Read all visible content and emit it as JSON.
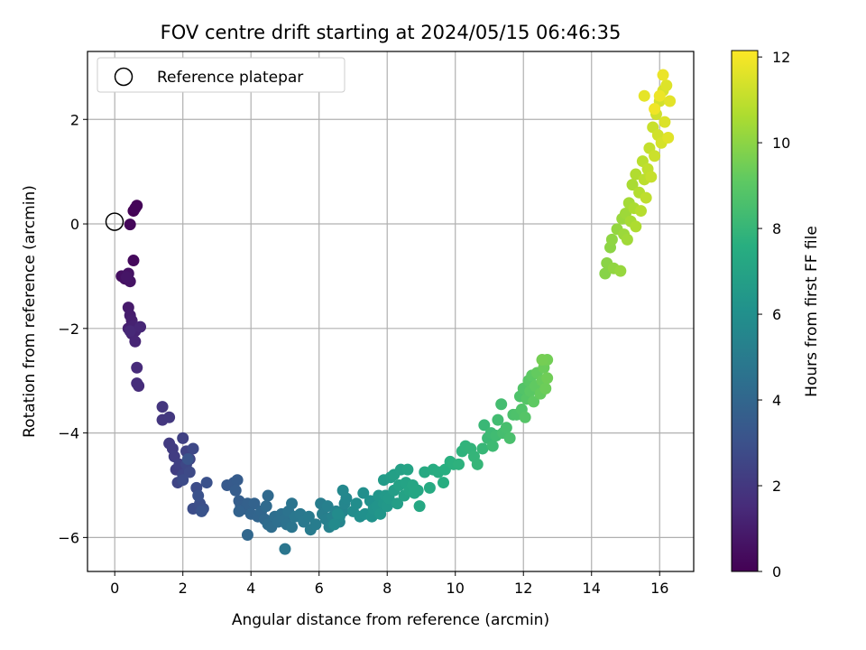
{
  "chart_data": {
    "type": "scatter",
    "title": "FOV centre drift starting at 2024/05/15 06:46:35",
    "xlabel": "Angular distance from reference (arcmin)",
    "ylabel": "Rotation from reference (arcmin)",
    "xlim": [
      -0.8,
      17.0
    ],
    "ylim": [
      -6.65,
      3.3
    ],
    "x_ticks": [
      0,
      2,
      4,
      6,
      8,
      10,
      12,
      14,
      16
    ],
    "x_tick_labels": [
      "0",
      "2",
      "4",
      "6",
      "8",
      "10",
      "12",
      "14",
      "16"
    ],
    "y_ticks": [
      -6,
      -4,
      -2,
      0,
      2
    ],
    "y_tick_labels": [
      "−6",
      "−4",
      "−2",
      "0",
      "2"
    ],
    "grid": true,
    "legend": {
      "position": "top-left",
      "entries": [
        "Reference platepar"
      ]
    },
    "reference_point": {
      "x": 0,
      "y": 0,
      "label": "Reference platepar"
    },
    "colorbar": {
      "label": "Hours from first FF file",
      "colormap": "viridis",
      "range": [
        0,
        12.15
      ],
      "ticks": [
        0,
        2,
        4,
        6,
        8,
        10,
        12
      ],
      "tick_labels": [
        "0",
        "2",
        "4",
        "6",
        "8",
        "10",
        "12"
      ]
    },
    "points": [
      [
        0.45,
        -0.01,
        0.2
      ],
      [
        0.55,
        0.25,
        0.05
      ],
      [
        0.65,
        0.35,
        0.1
      ],
      [
        0.6,
        0.3,
        0.15
      ],
      [
        0.55,
        -0.7,
        0.3
      ],
      [
        0.2,
        -1.0,
        0.5
      ],
      [
        0.3,
        -1.05,
        0.55
      ],
      [
        0.4,
        -0.95,
        0.6
      ],
      [
        0.45,
        -1.1,
        0.65
      ],
      [
        0.35,
        -1.02,
        0.7
      ],
      [
        0.4,
        -1.6,
        0.9
      ],
      [
        0.45,
        -1.75,
        1.0
      ],
      [
        0.5,
        -1.85,
        1.05
      ],
      [
        0.4,
        -2.0,
        1.1
      ],
      [
        0.55,
        -1.95,
        1.15
      ],
      [
        0.5,
        -2.1,
        1.2
      ],
      [
        0.6,
        -2.05,
        1.25
      ],
      [
        0.6,
        -2.25,
        1.3
      ],
      [
        0.75,
        -1.97,
        1.35
      ],
      [
        0.45,
        -2.05,
        1.4
      ],
      [
        0.65,
        -2.75,
        1.5
      ],
      [
        0.7,
        -3.1,
        1.55
      ],
      [
        0.65,
        -3.05,
        1.6
      ],
      [
        1.4,
        -3.5,
        1.9
      ],
      [
        1.4,
        -3.75,
        1.95
      ],
      [
        1.6,
        -3.7,
        2.0
      ],
      [
        1.6,
        -4.2,
        2.1
      ],
      [
        1.7,
        -4.3,
        2.15
      ],
      [
        1.75,
        -4.45,
        2.2
      ],
      [
        1.8,
        -4.7,
        2.25
      ],
      [
        1.9,
        -4.6,
        2.3
      ],
      [
        2.0,
        -4.1,
        2.35
      ],
      [
        2.1,
        -4.35,
        2.4
      ],
      [
        2.2,
        -4.5,
        2.45
      ],
      [
        1.85,
        -4.95,
        2.5
      ],
      [
        2.0,
        -4.8,
        2.55
      ],
      [
        2.1,
        -4.6,
        2.6
      ],
      [
        2.3,
        -4.3,
        2.65
      ],
      [
        2.2,
        -4.75,
        2.7
      ],
      [
        2.0,
        -4.9,
        2.75
      ],
      [
        2.4,
        -5.05,
        2.8
      ],
      [
        2.3,
        -5.45,
        2.85
      ],
      [
        2.5,
        -5.35,
        2.9
      ],
      [
        2.6,
        -5.45,
        2.95
      ],
      [
        2.7,
        -4.95,
        3.0
      ],
      [
        2.45,
        -5.2,
        3.05
      ],
      [
        2.55,
        -5.5,
        3.1
      ],
      [
        2.15,
        -4.5,
        3.15
      ],
      [
        3.3,
        -5.0,
        3.4
      ],
      [
        3.5,
        -4.95,
        3.45
      ],
      [
        3.6,
        -4.9,
        3.5
      ],
      [
        3.55,
        -5.1,
        3.55
      ],
      [
        3.65,
        -5.3,
        3.6
      ],
      [
        3.7,
        -5.4,
        3.65
      ],
      [
        3.8,
        -5.45,
        3.7
      ],
      [
        3.9,
        -5.35,
        3.75
      ],
      [
        3.65,
        -5.5,
        3.8
      ],
      [
        4.1,
        -5.35,
        3.85
      ],
      [
        4.0,
        -5.55,
        3.9
      ],
      [
        4.2,
        -5.6,
        3.95
      ],
      [
        4.3,
        -5.5,
        4.0
      ],
      [
        3.9,
        -5.95,
        4.05
      ],
      [
        4.4,
        -5.65,
        4.1
      ],
      [
        4.5,
        -5.2,
        4.15
      ],
      [
        4.45,
        -5.4,
        4.2
      ],
      [
        4.5,
        -5.75,
        4.25
      ],
      [
        4.6,
        -5.8,
        4.3
      ],
      [
        4.7,
        -5.6,
        4.35
      ],
      [
        4.8,
        -5.7,
        4.4
      ],
      [
        4.9,
        -5.55,
        4.45
      ],
      [
        5.0,
        -5.65,
        4.5
      ],
      [
        5.05,
        -5.75,
        4.55
      ],
      [
        5.1,
        -5.5,
        4.6
      ],
      [
        5.2,
        -5.35,
        4.65
      ],
      [
        5.2,
        -5.8,
        4.7
      ],
      [
        5.0,
        -6.22,
        4.75
      ],
      [
        5.3,
        -5.6,
        4.8
      ],
      [
        5.45,
        -5.55,
        4.85
      ],
      [
        5.55,
        -5.7,
        4.9
      ],
      [
        5.7,
        -5.6,
        4.95
      ],
      [
        5.75,
        -5.85,
        5.0
      ],
      [
        5.9,
        -5.75,
        5.05
      ],
      [
        6.05,
        -5.35,
        5.1
      ],
      [
        6.1,
        -5.55,
        5.15
      ],
      [
        6.2,
        -5.65,
        5.2
      ],
      [
        6.25,
        -5.4,
        5.25
      ],
      [
        6.3,
        -5.8,
        5.3
      ],
      [
        6.4,
        -5.6,
        5.35
      ],
      [
        6.5,
        -5.5,
        5.4
      ],
      [
        6.6,
        -5.7,
        5.45
      ],
      [
        6.7,
        -5.5,
        5.5
      ],
      [
        6.75,
        -5.35,
        5.55
      ],
      [
        6.8,
        -5.25,
        5.6
      ],
      [
        6.7,
        -5.1,
        5.65
      ],
      [
        6.6,
        -5.6,
        5.7
      ],
      [
        6.45,
        -5.75,
        5.75
      ],
      [
        6.55,
        -5.55,
        5.8
      ],
      [
        7.0,
        -5.5,
        5.85
      ],
      [
        7.1,
        -5.35,
        5.9
      ],
      [
        7.2,
        -5.6,
        5.95
      ],
      [
        7.3,
        -5.15,
        6.0
      ],
      [
        7.35,
        -5.55,
        6.05
      ],
      [
        7.5,
        -5.3,
        6.1
      ],
      [
        7.55,
        -5.6,
        6.15
      ],
      [
        7.6,
        -5.45,
        6.2
      ],
      [
        7.7,
        -5.4,
        6.25
      ],
      [
        7.75,
        -5.2,
        6.3
      ],
      [
        7.8,
        -5.55,
        6.35
      ],
      [
        7.9,
        -5.35,
        6.4
      ],
      [
        8.0,
        -5.4,
        6.45
      ],
      [
        7.95,
        -5.2,
        6.5
      ],
      [
        8.05,
        -5.25,
        6.55
      ],
      [
        7.9,
        -4.9,
        6.6
      ],
      [
        8.1,
        -4.85,
        6.65
      ],
      [
        8.2,
        -5.1,
        6.7
      ],
      [
        8.3,
        -5.35,
        6.75
      ],
      [
        8.2,
        -4.8,
        6.8
      ],
      [
        8.4,
        -4.7,
        6.85
      ],
      [
        8.35,
        -5.0,
        6.9
      ],
      [
        8.5,
        -5.2,
        6.95
      ],
      [
        8.55,
        -4.95,
        7.0
      ],
      [
        8.6,
        -4.7,
        7.0
      ],
      [
        8.65,
        -5.1,
        7.05
      ],
      [
        8.75,
        -5.0,
        7.1
      ],
      [
        8.8,
        -5.15,
        7.15
      ],
      [
        8.9,
        -5.1,
        7.2
      ],
      [
        8.95,
        -5.4,
        7.25
      ],
      [
        9.1,
        -4.75,
        7.35
      ],
      [
        9.25,
        -5.05,
        7.4
      ],
      [
        9.35,
        -4.7,
        7.45
      ],
      [
        9.5,
        -4.75,
        7.5
      ],
      [
        9.65,
        -4.95,
        7.55
      ],
      [
        9.7,
        -4.7,
        7.6
      ],
      [
        9.85,
        -4.55,
        7.65
      ],
      [
        9.95,
        -4.6,
        7.7
      ],
      [
        10.1,
        -4.6,
        7.75
      ],
      [
        10.2,
        -4.35,
        7.8
      ],
      [
        10.3,
        -4.25,
        7.85
      ],
      [
        10.45,
        -4.3,
        7.9
      ],
      [
        10.55,
        -4.45,
        7.95
      ],
      [
        10.65,
        -4.6,
        8.0
      ],
      [
        10.8,
        -4.3,
        8.05
      ],
      [
        10.85,
        -3.85,
        8.1
      ],
      [
        10.95,
        -4.1,
        8.15
      ],
      [
        11.05,
        -4.0,
        8.2
      ],
      [
        11.1,
        -4.25,
        8.25
      ],
      [
        11.2,
        -4.05,
        8.3
      ],
      [
        11.25,
        -3.75,
        8.35
      ],
      [
        11.35,
        -3.45,
        8.4
      ],
      [
        11.4,
        -4.0,
        8.45
      ],
      [
        11.5,
        -3.9,
        8.5
      ],
      [
        11.6,
        -4.1,
        8.55
      ],
      [
        11.7,
        -3.65,
        8.6
      ],
      [
        11.8,
        -3.65,
        8.65
      ],
      [
        11.9,
        -3.3,
        8.7
      ],
      [
        11.95,
        -3.55,
        8.75
      ],
      [
        12.0,
        -3.15,
        8.8
      ],
      [
        12.05,
        -3.7,
        8.85
      ],
      [
        12.1,
        -3.35,
        8.9
      ],
      [
        12.15,
        -3.0,
        8.95
      ],
      [
        12.2,
        -3.2,
        9.0
      ],
      [
        12.25,
        -2.9,
        9.05
      ],
      [
        12.3,
        -3.4,
        9.1
      ],
      [
        12.35,
        -3.1,
        9.15
      ],
      [
        12.4,
        -2.85,
        9.2
      ],
      [
        12.5,
        -3.25,
        9.25
      ],
      [
        12.55,
        -3.0,
        9.3
      ],
      [
        12.6,
        -2.75,
        9.35
      ],
      [
        12.65,
        -3.15,
        9.4
      ],
      [
        12.7,
        -2.95,
        9.45
      ],
      [
        12.7,
        -2.6,
        9.5
      ],
      [
        12.55,
        -2.6,
        9.55
      ],
      [
        14.4,
        -0.95,
        9.9
      ],
      [
        14.45,
        -0.75,
        9.95
      ],
      [
        14.55,
        -0.45,
        10.0
      ],
      [
        14.6,
        -0.3,
        10.05
      ],
      [
        14.65,
        -0.85,
        10.1
      ],
      [
        14.75,
        -0.1,
        10.15
      ],
      [
        14.85,
        -0.9,
        10.2
      ],
      [
        14.9,
        0.1,
        10.25
      ],
      [
        14.95,
        -0.2,
        10.3
      ],
      [
        15.0,
        0.2,
        10.35
      ],
      [
        15.05,
        -0.3,
        10.4
      ],
      [
        15.1,
        0.4,
        10.45
      ],
      [
        15.15,
        0.05,
        10.5
      ],
      [
        15.2,
        0.75,
        10.55
      ],
      [
        15.25,
        0.3,
        10.6
      ],
      [
        15.3,
        -0.05,
        10.65
      ],
      [
        15.3,
        0.95,
        10.7
      ],
      [
        15.4,
        0.6,
        10.75
      ],
      [
        15.45,
        0.25,
        10.8
      ],
      [
        15.5,
        1.2,
        10.85
      ],
      [
        15.55,
        0.85,
        10.9
      ],
      [
        15.6,
        0.5,
        10.95
      ],
      [
        15.65,
        1.05,
        11.0
      ],
      [
        15.7,
        1.45,
        11.05
      ],
      [
        15.75,
        0.9,
        11.1
      ],
      [
        15.8,
        1.85,
        11.15
      ],
      [
        15.85,
        1.3,
        11.2
      ],
      [
        15.9,
        2.1,
        11.25
      ],
      [
        15.95,
        1.7,
        11.3
      ],
      [
        16.0,
        2.35,
        11.35
      ],
      [
        16.05,
        1.55,
        11.4
      ],
      [
        16.1,
        2.55,
        11.45
      ],
      [
        16.15,
        1.95,
        11.5
      ],
      [
        16.2,
        2.65,
        11.55
      ],
      [
        16.25,
        1.65,
        11.6
      ],
      [
        16.3,
        2.35,
        11.65
      ],
      [
        15.55,
        2.45,
        11.7
      ],
      [
        16.1,
        2.85,
        11.8
      ],
      [
        16.0,
        2.45,
        11.85
      ],
      [
        15.85,
        2.2,
        11.9
      ]
    ]
  }
}
